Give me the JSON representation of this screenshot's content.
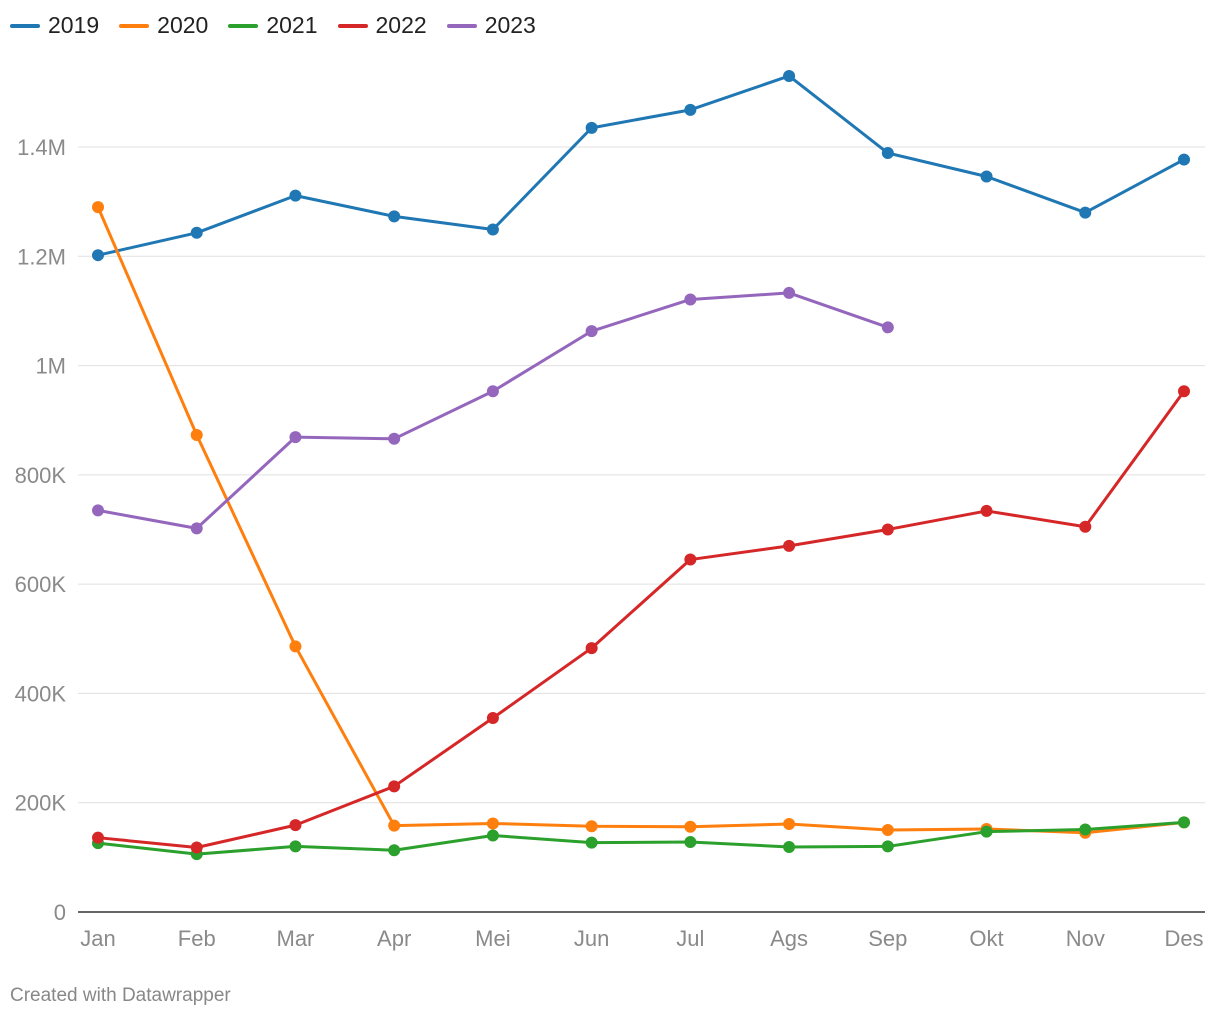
{
  "chart_data": {
    "type": "line",
    "categories": [
      "Jan",
      "Feb",
      "Mar",
      "Apr",
      "Mei",
      "Jun",
      "Jul",
      "Ags",
      "Sep",
      "Okt",
      "Nov",
      "Des"
    ],
    "ylim": [
      0,
      1500000
    ],
    "y_ticks": [
      0,
      200000,
      400000,
      600000,
      800000,
      1000000,
      1200000,
      1400000
    ],
    "y_tick_labels": [
      "0",
      "200K",
      "400K",
      "600K",
      "800K",
      "1M",
      "1.2M",
      "1.4M"
    ],
    "grid": true,
    "legend_position": "top-left",
    "series": [
      {
        "name": "2019",
        "color": "#1f77b4",
        "values": [
          1202000,
          1243000,
          1311000,
          1273000,
          1249000,
          1435000,
          1468000,
          1530000,
          1389000,
          1346000,
          1280000,
          1377000
        ]
      },
      {
        "name": "2020",
        "color": "#ff7f0e",
        "values": [
          1290000,
          873000,
          486000,
          158000,
          162000,
          157000,
          156000,
          161000,
          150000,
          152000,
          145000,
          164000
        ]
      },
      {
        "name": "2021",
        "color": "#2ca02c",
        "values": [
          126000,
          106000,
          120000,
          113000,
          140000,
          127000,
          128000,
          119000,
          120000,
          147000,
          151000,
          164000
        ]
      },
      {
        "name": "2022",
        "color": "#d62728",
        "values": [
          136000,
          118000,
          159000,
          230000,
          355000,
          483000,
          645000,
          670000,
          700000,
          734000,
          705000,
          953000
        ]
      },
      {
        "name": "2023",
        "color": "#9467bd",
        "values": [
          735000,
          702000,
          869000,
          866000,
          953000,
          1063000,
          1121000,
          1133000,
          1070000,
          null,
          null,
          null
        ]
      }
    ]
  },
  "footer": {
    "credit": "Created with Datawrapper"
  }
}
